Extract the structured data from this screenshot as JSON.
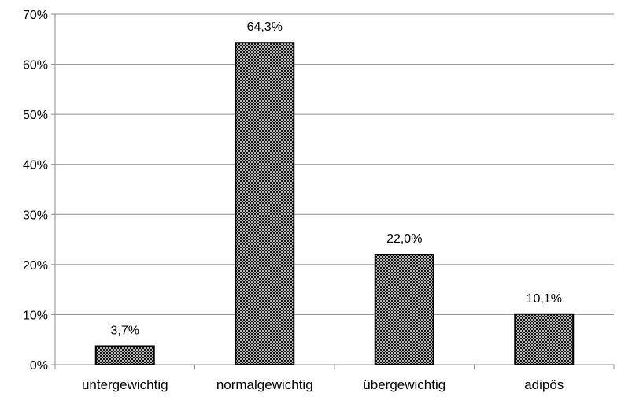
{
  "chart_data": {
    "type": "bar",
    "title": "",
    "xlabel": "",
    "ylabel": "",
    "categories": [
      "untergewichtig",
      "normalgewichtig",
      "übergewichtig",
      "adipös"
    ],
    "values": [
      3.7,
      64.3,
      22.0,
      10.1
    ],
    "data_labels": [
      "3,7%",
      "64,3%",
      "22,0%",
      "10,1%"
    ],
    "ylim": [
      0,
      70
    ],
    "yticks": [
      0,
      10,
      20,
      30,
      40,
      50,
      60,
      70
    ],
    "ytick_labels": [
      "0%",
      "10%",
      "20%",
      "30%",
      "40%",
      "50%",
      "60%",
      "70%"
    ],
    "grid": true,
    "legend": "none",
    "bar_pattern": "crosshatch",
    "colors": {
      "bar_fill": "#8a8a8a",
      "bar_stroke": "#000000",
      "grid": "#8c8c8c"
    }
  }
}
